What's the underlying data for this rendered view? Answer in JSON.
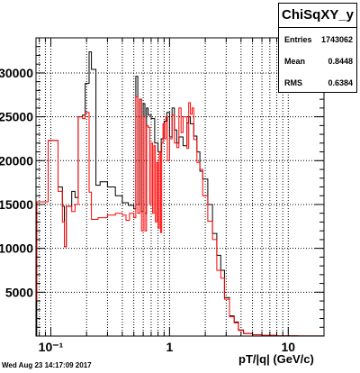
{
  "chart_data": {
    "type": "histogram",
    "title": "ChiSqXY_y",
    "xlabel": "pT/|q| (GeV/c)",
    "ylabel": "",
    "xscale": "log",
    "xlim": [
      0.075,
      20
    ],
    "ylim": [
      0,
      34000
    ],
    "grid": true,
    "legend": "none",
    "x_ticks": [
      {
        "value": 0.1,
        "label": "10⁻¹"
      },
      {
        "value": 1,
        "label": "1"
      },
      {
        "value": 10,
        "label": "10"
      }
    ],
    "y_ticks": [
      {
        "value": 5000,
        "label": "5000"
      },
      {
        "value": 10000,
        "label": "10000"
      },
      {
        "value": 15000,
        "label": "15000"
      },
      {
        "value": 20000,
        "label": "20000"
      },
      {
        "value": 25000,
        "label": "25000"
      },
      {
        "value": 30000,
        "label": "30000"
      }
    ],
    "series": [
      {
        "color": "#000000",
        "points": [
          [
            0.075,
            0
          ],
          [
            0.076,
            15300
          ],
          [
            0.095,
            22300
          ],
          [
            0.115,
            17000
          ],
          [
            0.125,
            14800
          ],
          [
            0.13,
            10200
          ],
          [
            0.135,
            14800
          ],
          [
            0.15,
            16500
          ],
          [
            0.16,
            15800
          ],
          [
            0.17,
            25000
          ],
          [
            0.185,
            25200
          ],
          [
            0.195,
            28800
          ],
          [
            0.21,
            32400
          ],
          [
            0.22,
            30400
          ],
          [
            0.24,
            17200
          ],
          [
            0.26,
            17600
          ],
          [
            0.3,
            17000
          ],
          [
            0.35,
            16000
          ],
          [
            0.4,
            15200
          ],
          [
            0.45,
            14900
          ],
          [
            0.5,
            14500
          ],
          [
            0.52,
            29600
          ],
          [
            0.54,
            15000
          ],
          [
            0.56,
            27000
          ],
          [
            0.58,
            14200
          ],
          [
            0.6,
            26500
          ],
          [
            0.62,
            14000
          ],
          [
            0.64,
            26000
          ],
          [
            0.66,
            25200
          ],
          [
            0.7,
            24800
          ],
          [
            0.75,
            22000
          ],
          [
            0.8,
            21000
          ],
          [
            0.85,
            22500
          ],
          [
            0.9,
            24500
          ],
          [
            0.95,
            25500
          ],
          [
            1.0,
            22700
          ],
          [
            1.05,
            26000
          ],
          [
            1.1,
            23500
          ],
          [
            1.15,
            22000
          ],
          [
            1.2,
            22700
          ],
          [
            1.3,
            21700
          ],
          [
            1.4,
            24300
          ],
          [
            1.45,
            25000
          ],
          [
            1.5,
            24200
          ],
          [
            1.6,
            22800
          ],
          [
            1.7,
            21000
          ],
          [
            1.8,
            18800
          ],
          [
            1.9,
            17900
          ],
          [
            2.1,
            15000
          ],
          [
            2.3,
            11700
          ],
          [
            2.5,
            9200
          ],
          [
            2.7,
            7500
          ],
          [
            2.9,
            4400
          ],
          [
            3.2,
            2300
          ],
          [
            3.5,
            1600
          ],
          [
            3.8,
            700
          ],
          [
            4.2,
            300
          ],
          [
            5,
            150
          ],
          [
            6,
            80
          ],
          [
            8,
            30
          ],
          [
            12,
            10
          ],
          [
            20,
            0
          ]
        ]
      },
      {
        "color": "#ff0000",
        "points": [
          [
            0.075,
            4000
          ],
          [
            0.076,
            15300
          ],
          [
            0.095,
            22300
          ],
          [
            0.115,
            16500
          ],
          [
            0.125,
            13000
          ],
          [
            0.13,
            10200
          ],
          [
            0.135,
            14800
          ],
          [
            0.15,
            14200
          ],
          [
            0.16,
            15000
          ],
          [
            0.17,
            25000
          ],
          [
            0.185,
            24800
          ],
          [
            0.195,
            25500
          ],
          [
            0.21,
            16400
          ],
          [
            0.22,
            13300
          ],
          [
            0.25,
            13500
          ],
          [
            0.3,
            13800
          ],
          [
            0.35,
            14000
          ],
          [
            0.4,
            13800
          ],
          [
            0.43,
            13200
          ],
          [
            0.46,
            14000
          ],
          [
            0.5,
            13500
          ],
          [
            0.52,
            27300
          ],
          [
            0.54,
            14000
          ],
          [
            0.56,
            27000
          ],
          [
            0.58,
            12000
          ],
          [
            0.6,
            25000
          ],
          [
            0.62,
            12000
          ],
          [
            0.64,
            24000
          ],
          [
            0.66,
            23800
          ],
          [
            0.68,
            15000
          ],
          [
            0.7,
            22000
          ],
          [
            0.72,
            14000
          ],
          [
            0.74,
            21700
          ],
          [
            0.76,
            13000
          ],
          [
            0.78,
            19800
          ],
          [
            0.8,
            12300
          ],
          [
            0.82,
            21000
          ],
          [
            0.84,
            11800
          ],
          [
            0.86,
            22000
          ],
          [
            0.88,
            24200
          ],
          [
            0.9,
            22500
          ],
          [
            0.93,
            25000
          ],
          [
            0.96,
            20000
          ],
          [
            1.0,
            22500
          ],
          [
            1.05,
            25200
          ],
          [
            1.1,
            22000
          ],
          [
            1.15,
            21500
          ],
          [
            1.2,
            26000
          ],
          [
            1.25,
            23200
          ],
          [
            1.3,
            25000
          ],
          [
            1.4,
            21400
          ],
          [
            1.45,
            26600
          ],
          [
            1.5,
            25300
          ],
          [
            1.55,
            26000
          ],
          [
            1.6,
            22400
          ],
          [
            1.7,
            19800
          ],
          [
            1.8,
            19000
          ],
          [
            1.9,
            16000
          ],
          [
            2.1,
            13100
          ],
          [
            2.3,
            11000
          ],
          [
            2.5,
            7500
          ],
          [
            2.7,
            6600
          ],
          [
            2.9,
            4200
          ],
          [
            3.2,
            2200
          ],
          [
            3.5,
            1500
          ],
          [
            3.8,
            650
          ],
          [
            4.2,
            280
          ],
          [
            5,
            140
          ],
          [
            6,
            70
          ],
          [
            8,
            25
          ],
          [
            12,
            8
          ],
          [
            20,
            0
          ]
        ]
      }
    ]
  },
  "stats": {
    "title": "ChiSqXY_y",
    "entries_label": "Entries",
    "entries_value": "1743062",
    "mean_label": "Mean",
    "mean_value": "0.8448",
    "rms_label": "RMS",
    "rms_value": "0.6384"
  },
  "footer": {
    "date": "Wed Aug 23 14:17:09 2017"
  }
}
